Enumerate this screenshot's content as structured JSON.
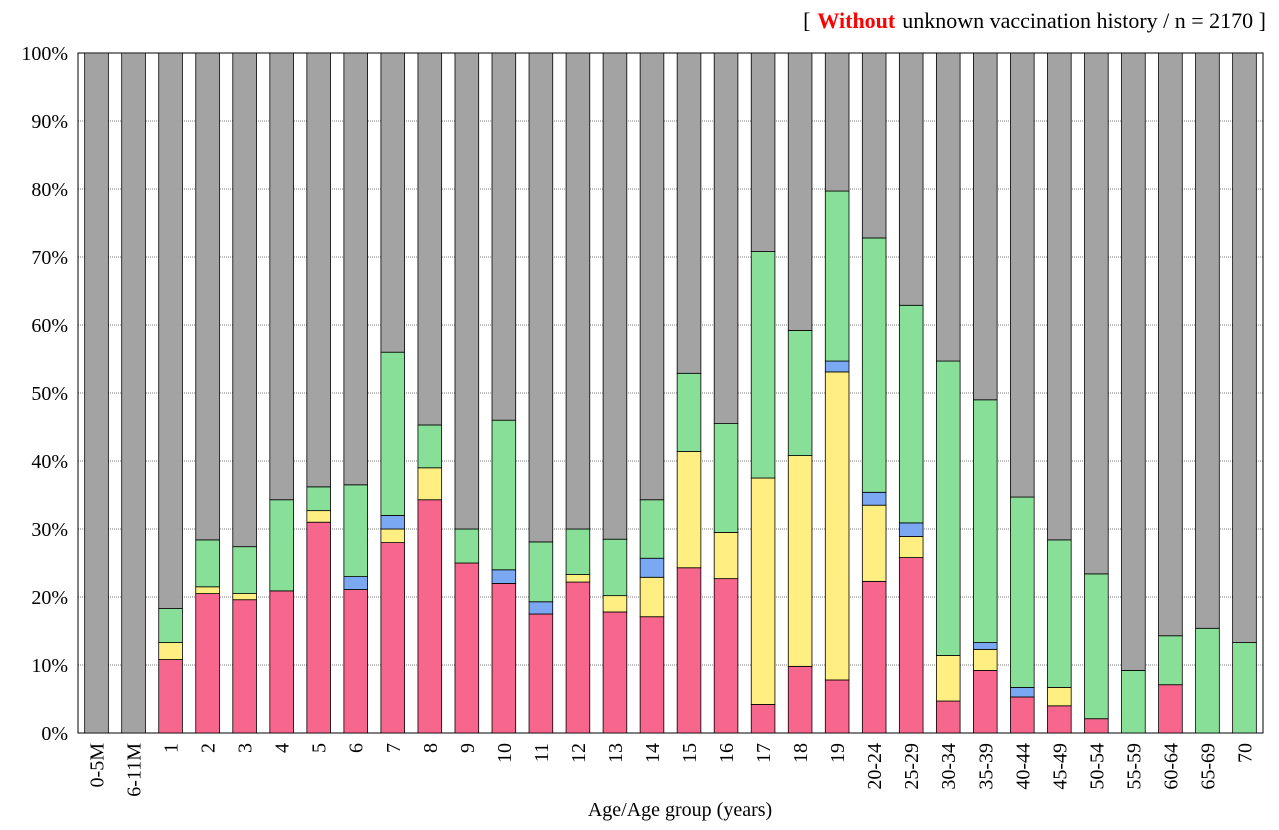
{
  "chart_data": {
    "type": "stacked_bar",
    "title_open": "[",
    "title_highlight": "Without",
    "title_rest": "unknown vaccination history / n = 2170 ]",
    "x_label": "Age/Age group (years)",
    "categories": [
      "0-5M",
      "6-11M",
      "1",
      "2",
      "3",
      "4",
      "5",
      "6",
      "7",
      "8",
      "9",
      "10",
      "11",
      "12",
      "13",
      "14",
      "15",
      "16",
      "17",
      "18",
      "19",
      "20-24",
      "25-29",
      "30-34",
      "35-39",
      "40-44",
      "45-49",
      "50-54",
      "55-59",
      "60-64",
      "65-69",
      "70"
    ],
    "series": [
      {
        "color": "#f7668c",
        "values": [
          0,
          0,
          10.8,
          20.5,
          19.6,
          20.9,
          31.0,
          21.1,
          28.0,
          34.3,
          25.0,
          22.0,
          17.5,
          22.2,
          17.8,
          17.1,
          24.3,
          22.7,
          4.2,
          9.8,
          7.8,
          22.3,
          25.8,
          4.7,
          9.2,
          5.3,
          4.0,
          2.1,
          0,
          7.1,
          0,
          0
        ]
      },
      {
        "color": "#ffee82",
        "values": [
          0,
          0,
          2.5,
          1.0,
          0.9,
          0,
          1.7,
          0,
          2.0,
          4.7,
          0,
          0,
          0,
          1.1,
          2.4,
          5.8,
          17.1,
          6.8,
          33.3,
          31.0,
          45.3,
          11.2,
          3.1,
          6.7,
          3.1,
          0,
          2.7,
          0,
          0,
          0,
          0,
          0
        ]
      },
      {
        "color": "#7aa8f2",
        "values": [
          0,
          0,
          0,
          0,
          0,
          0,
          0,
          1.9,
          2.0,
          0,
          0,
          2.0,
          1.8,
          0,
          0,
          2.8,
          0,
          0,
          0,
          0,
          1.6,
          1.9,
          2.0,
          0,
          1.0,
          1.4,
          0,
          0,
          0,
          0,
          0,
          0
        ]
      },
      {
        "color": "#88e098",
        "values": [
          0,
          0,
          5.0,
          6.9,
          6.9,
          13.4,
          3.5,
          13.5,
          24.0,
          6.3,
          5.0,
          22.0,
          8.8,
          6.7,
          8.3,
          8.6,
          11.5,
          16.0,
          33.3,
          18.4,
          25.0,
          37.4,
          32.0,
          43.3,
          35.7,
          28.0,
          21.7,
          21.3,
          9.2,
          7.2,
          15.4,
          13.3
        ]
      },
      {
        "color": "#a3a3a3",
        "values": [
          100,
          100,
          81.7,
          71.6,
          72.6,
          65.7,
          63.8,
          63.5,
          44.0,
          54.7,
          70.0,
          54.0,
          71.9,
          70.0,
          71.5,
          65.7,
          47.1,
          54.5,
          29.2,
          40.8,
          20.3,
          27.2,
          37.1,
          45.3,
          51.0,
          65.3,
          71.6,
          76.6,
          90.8,
          85.7,
          84.6,
          86.7
        ]
      }
    ],
    "ylim": [
      0,
      100
    ],
    "yticks": [
      {
        "value": 0,
        "label": "0%"
      },
      {
        "value": 10,
        "label": "10%"
      },
      {
        "value": 20,
        "label": "20%"
      },
      {
        "value": 30,
        "label": "30%"
      },
      {
        "value": 40,
        "label": "40%"
      },
      {
        "value": 50,
        "label": "50%"
      },
      {
        "value": 60,
        "label": "60%"
      },
      {
        "value": 70,
        "label": "70%"
      },
      {
        "value": 80,
        "label": "80%"
      },
      {
        "value": 90,
        "label": "90%"
      },
      {
        "value": 100,
        "label": "100%"
      }
    ],
    "grid": true
  }
}
